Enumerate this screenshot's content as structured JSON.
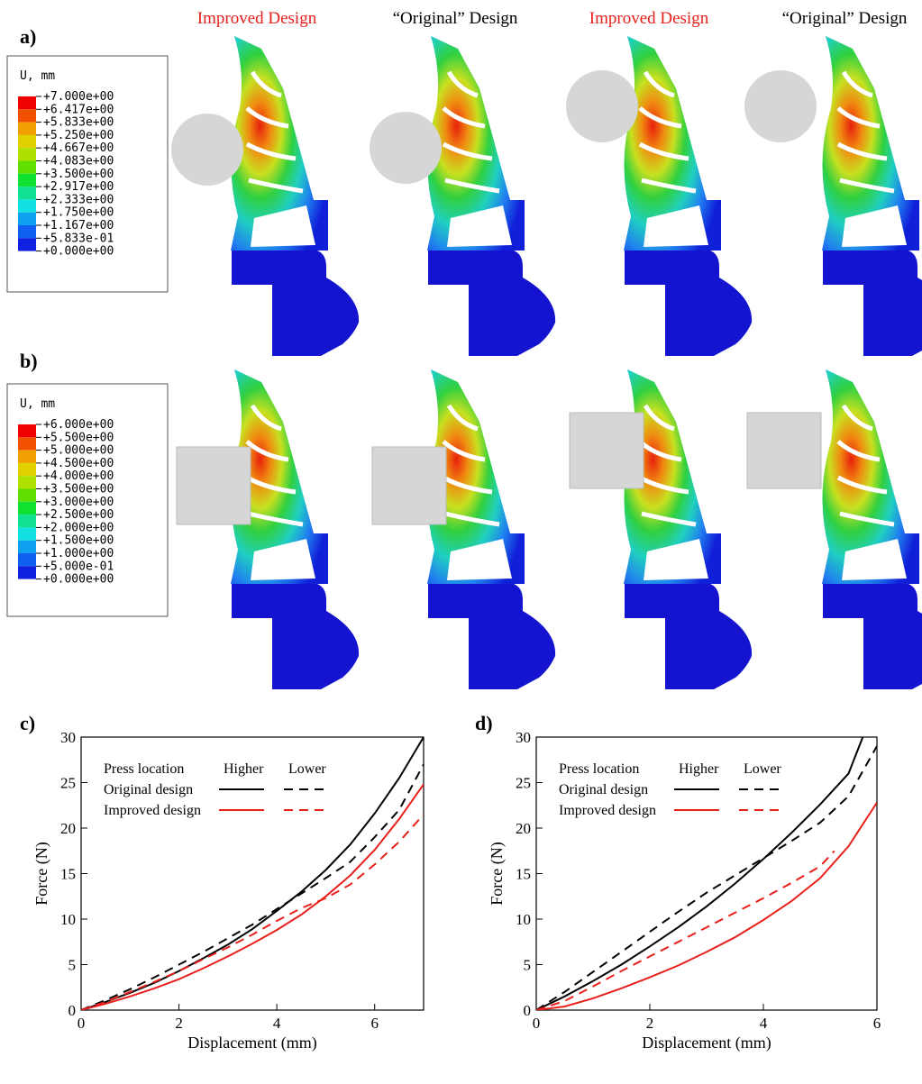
{
  "panels": [
    "a)",
    "b)",
    "c)",
    "d)"
  ],
  "headers": [
    "Improved Design",
    "“Original” Design",
    "Improved Design",
    "“Original” Design"
  ],
  "header_colors": [
    "#e8201c",
    "#000000",
    "#e8201c",
    "#000000"
  ],
  "colorbars": [
    {
      "title": "U, mm",
      "labels": [
        "+7.000e+00",
        "+6.417e+00",
        "+5.833e+00",
        "+5.250e+00",
        "+4.667e+00",
        "+4.083e+00",
        "+3.500e+00",
        "+2.917e+00",
        "+2.333e+00",
        "+1.750e+00",
        "+1.167e+00",
        "+5.833e-01",
        "+0.000e+00"
      ]
    },
    {
      "title": "U, mm",
      "labels": [
        "+6.000e+00",
        "+5.500e+00",
        "+5.000e+00",
        "+4.500e+00",
        "+4.000e+00",
        "+3.500e+00",
        "+3.000e+00",
        "+2.500e+00",
        "+2.000e+00",
        "+1.500e+00",
        "+1.000e+00",
        "+5.000e-01",
        "+0.000e+00"
      ]
    }
  ],
  "chart_data": [
    {
      "type": "line",
      "xlabel": "Displacement (mm)",
      "ylabel": "Force (N)",
      "xlim": [
        0,
        7
      ],
      "xticks": [
        0,
        2,
        4,
        6
      ],
      "ylim": [
        0,
        30
      ],
      "yticks": [
        0,
        5,
        10,
        15,
        20,
        25,
        30
      ],
      "legend": {
        "header": "Press location",
        "columns": [
          "Higher",
          "Lower"
        ],
        "rows": [
          "Original design",
          "Improved design"
        ]
      },
      "series": [
        {
          "color": "#000000",
          "dashed": false,
          "x": [
            0,
            0.5,
            1,
            1.5,
            2,
            2.5,
            3,
            3.5,
            4,
            4.5,
            5,
            5.5,
            6,
            6.5,
            7
          ],
          "values": [
            0,
            0.9,
            1.9,
            3.0,
            4.3,
            5.7,
            7.2,
            8.9,
            10.9,
            13.0,
            15.4,
            18.2,
            21.6,
            25.5,
            30.0
          ]
        },
        {
          "color": "#000000",
          "dashed": true,
          "x": [
            0,
            0.5,
            1,
            1.5,
            2,
            2.5,
            3,
            3.5,
            4,
            4.5,
            5,
            5.5,
            6,
            6.5,
            7
          ],
          "values": [
            0,
            1.1,
            2.3,
            3.6,
            5.0,
            6.4,
            7.9,
            9.4,
            11.1,
            12.8,
            14.5,
            16.3,
            19.0,
            22.0,
            27.0
          ]
        },
        {
          "color": "#e8201c",
          "dashed": false,
          "x": [
            0,
            0.5,
            1,
            1.5,
            2,
            2.5,
            3,
            3.5,
            4,
            4.5,
            5,
            5.5,
            6,
            6.5,
            7
          ],
          "values": [
            0,
            0.7,
            1.5,
            2.4,
            3.4,
            4.6,
            5.9,
            7.3,
            8.8,
            10.5,
            12.5,
            14.8,
            17.6,
            21.0,
            24.8
          ]
        },
        {
          "color": "#e8201c",
          "dashed": true,
          "x": [
            0,
            0.5,
            1,
            1.5,
            2,
            2.5,
            3,
            3.5,
            4,
            4.5,
            5,
            5.5,
            6,
            6.5,
            7
          ],
          "values": [
            0,
            0.9,
            2.0,
            3.1,
            4.3,
            5.6,
            6.9,
            8.3,
            9.8,
            11.2,
            12.3,
            13.8,
            16.0,
            18.5,
            21.5
          ]
        }
      ]
    },
    {
      "type": "line",
      "xlabel": "Displacement (mm)",
      "ylabel": "Force (N)",
      "xlim": [
        0,
        6
      ],
      "xticks": [
        0,
        2,
        4,
        6
      ],
      "ylim": [
        0,
        30
      ],
      "yticks": [
        0,
        5,
        10,
        15,
        20,
        25,
        30
      ],
      "legend": {
        "header": "Press location",
        "columns": [
          "Higher",
          "Lower"
        ],
        "rows": [
          "Original design",
          "Improved design"
        ]
      },
      "series": [
        {
          "color": "#000000",
          "dashed": false,
          "x": [
            0,
            0.5,
            1,
            1.5,
            2,
            2.5,
            3,
            3.5,
            4,
            4.5,
            5,
            5.5,
            5.75
          ],
          "values": [
            0,
            1.5,
            3.2,
            5.0,
            7.0,
            9.1,
            11.4,
            13.9,
            16.6,
            19.5,
            22.6,
            26.0,
            30.0
          ]
        },
        {
          "color": "#000000",
          "dashed": true,
          "x": [
            0,
            0.5,
            1,
            1.5,
            2,
            2.5,
            3,
            3.5,
            4,
            4.5,
            5,
            5.5,
            6
          ],
          "values": [
            0,
            2.0,
            4.2,
            6.4,
            8.6,
            10.8,
            12.9,
            14.8,
            16.7,
            18.6,
            20.6,
            23.5,
            29.0
          ]
        },
        {
          "color": "#e8201c",
          "dashed": false,
          "x": [
            0,
            0.5,
            1,
            1.5,
            2,
            2.5,
            3,
            3.5,
            4,
            4.5,
            5,
            5.5,
            6
          ],
          "values": [
            0,
            0.4,
            1.3,
            2.4,
            3.6,
            4.9,
            6.4,
            8.0,
            9.9,
            12.0,
            14.5,
            18.0,
            22.8
          ]
        },
        {
          "color": "#e8201c",
          "dashed": true,
          "x": [
            0,
            0.5,
            1,
            1.5,
            2,
            2.5,
            3,
            3.5,
            4,
            4.5,
            5,
            5.25
          ],
          "values": [
            0,
            1.0,
            2.6,
            4.3,
            5.9,
            7.5,
            9.1,
            10.7,
            12.3,
            14.0,
            15.8,
            17.5
          ]
        }
      ]
    }
  ]
}
